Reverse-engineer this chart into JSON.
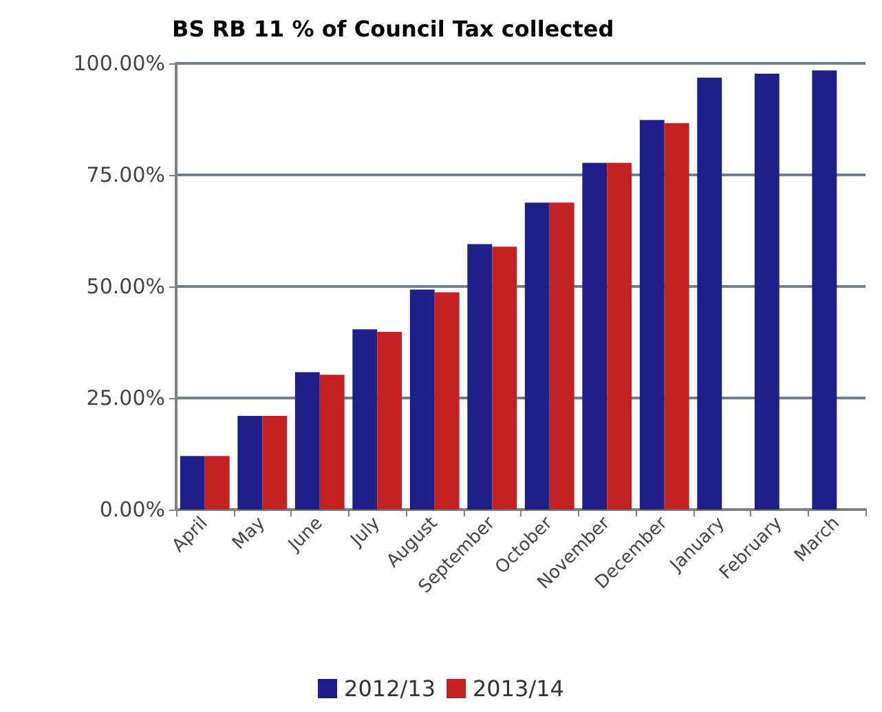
{
  "chart_data": {
    "type": "bar",
    "title": "BS RB 11 % of Council Tax collected",
    "categories": [
      "April",
      "May",
      "June",
      "July",
      "August",
      "September",
      "October",
      "November",
      "December",
      "January",
      "February",
      "March"
    ],
    "series": [
      {
        "name": "2012/13",
        "color": "#1f1f8a",
        "values": [
          12.0,
          21.0,
          30.8,
          40.4,
          49.3,
          59.5,
          68.8,
          77.7,
          87.3,
          96.8,
          97.7,
          98.4
        ]
      },
      {
        "name": "2013/14",
        "color": "#c42222",
        "values": [
          12.0,
          21.0,
          30.2,
          39.8,
          48.7,
          58.9,
          68.8,
          77.7,
          86.6,
          null,
          null,
          null
        ]
      }
    ],
    "ylim": [
      0,
      100
    ],
    "yticks": [
      {
        "value": 0,
        "label": "0.00%"
      },
      {
        "value": 25,
        "label": "25.00%"
      },
      {
        "value": 50,
        "label": "50.00%"
      },
      {
        "value": 75,
        "label": "75.00%"
      },
      {
        "value": 100,
        "label": "100.00%"
      }
    ],
    "grid": "y",
    "legend": "bottom"
  }
}
